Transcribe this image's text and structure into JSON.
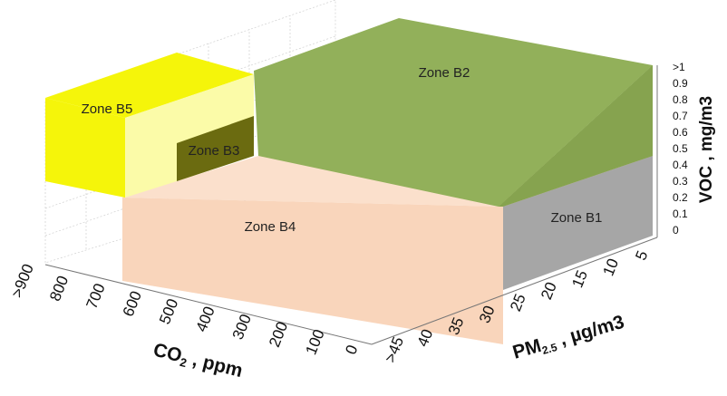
{
  "chart_data": {
    "type": "3d-box",
    "axes": {
      "co2": {
        "label_main": "CO",
        "label_sub": "2",
        "label_rest": " , ppm",
        "tick_labels": [
          "0",
          "100",
          "200",
          "300",
          "400",
          "500",
          "600",
          "700",
          "800",
          ">900"
        ],
        "range": [
          0,
          900
        ]
      },
      "pm25": {
        "label_main": "PM",
        "label_sub": "2.5",
        "label_rest": " , µg/m3",
        "tick_labels": [
          "5",
          "10",
          "15",
          "20",
          "25",
          "30",
          "35",
          "40",
          ">45"
        ],
        "range": [
          0,
          45
        ]
      },
      "voc": {
        "label": "VOC , mg/m3",
        "tick_labels": [
          "0",
          "0.1",
          "0.2",
          "0.3",
          "0.4",
          "0.5",
          "0.6",
          "0.7",
          "0.8",
          "0.9",
          ">1"
        ],
        "range": [
          0,
          1
        ]
      }
    },
    "zones": [
      {
        "name": "Zone B1",
        "color": "#a6a6a6",
        "co2": [
          0,
          0
        ],
        "pm25": [
          0,
          25
        ],
        "voc": [
          0,
          0.4
        ]
      },
      {
        "name": "Zone B2",
        "color": "#92b05a",
        "co2": [
          0,
          620
        ],
        "pm25": [
          0,
          25
        ],
        "voc": [
          0.4,
          1
        ]
      },
      {
        "name": "Zone B3",
        "color": "#6b6b10",
        "co2": [
          620,
          900
        ],
        "pm25": [
          25,
          30
        ],
        "voc": [
          0.35,
          0.6
        ]
      },
      {
        "name": "Zone B4",
        "color": "#f9d5bb",
        "co2": [
          0,
          620
        ],
        "pm25": [
          25,
          45
        ],
        "voc": [
          0,
          0.35
        ]
      },
      {
        "name": "Zone B5",
        "color": "#f5f50a",
        "co2": [
          620,
          900
        ],
        "pm25": [
          25,
          45
        ],
        "voc": [
          0.35,
          0.8
        ]
      }
    ]
  }
}
